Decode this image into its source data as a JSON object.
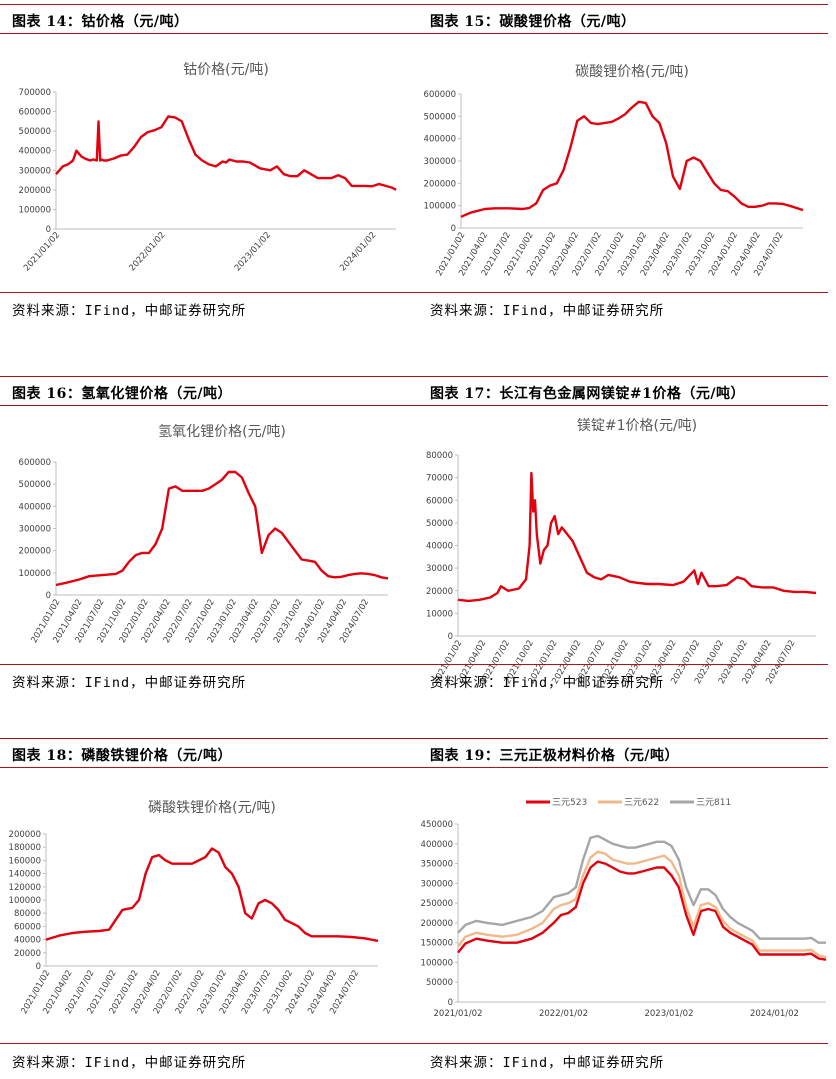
{
  "source_text": "资料来源：IFind，中邮证券研究所",
  "panels": [
    {
      "id": "p14",
      "header": "图表 14：钴价格（元/吨）"
    },
    {
      "id": "p15",
      "header": "图表 15：碳酸锂价格（元/吨）"
    },
    {
      "id": "p16",
      "header": "图表 16：氢氧化锂价格（元/吨）"
    },
    {
      "id": "p17",
      "header": "图表 17：长江有色金属网镁锭#1价格（元/吨）"
    },
    {
      "id": "p18",
      "header": "图表 18：磷酸铁锂价格（元/吨）"
    },
    {
      "id": "p19",
      "header": "图表 19：三元正极材料价格（元/吨）"
    }
  ],
  "chart_data": [
    {
      "id": "c14",
      "type": "line",
      "title": "钴价格(元/吨)",
      "x_tick_labels": [
        "2021/01/02",
        "2022/01/02",
        "2023/01/02",
        "2024/01/02"
      ],
      "ylim": [
        0,
        700000
      ],
      "y_tick_labels": [
        "0",
        "100000",
        "200000",
        "300000",
        "400000",
        "500000",
        "600000",
        "700000"
      ],
      "grid": false,
      "legend": "none",
      "colors": {
        "line": "#e3000f"
      },
      "series": [
        {
          "x": [
            0,
            0.02,
            0.035,
            0.05,
            0.06,
            0.075,
            0.085,
            0.1,
            0.11,
            0.12,
            0.125,
            0.13,
            0.135,
            0.14,
            0.15,
            0.17,
            0.19,
            0.21,
            0.23,
            0.25,
            0.27,
            0.29,
            0.31,
            0.33,
            0.35,
            0.37,
            0.39,
            0.41,
            0.43,
            0.45,
            0.47,
            0.49,
            0.5,
            0.51,
            0.53,
            0.55,
            0.57,
            0.6,
            0.63,
            0.65,
            0.67,
            0.69,
            0.71,
            0.73,
            0.75,
            0.77,
            0.79,
            0.81,
            0.83,
            0.85,
            0.87,
            0.89,
            0.91,
            0.93,
            0.95,
            0.97,
            0.99,
            1.0
          ],
          "values": [
            280000,
            320000,
            330000,
            350000,
            400000,
            370000,
            360000,
            350000,
            355000,
            350000,
            550000,
            350000,
            355000,
            350000,
            350000,
            360000,
            375000,
            380000,
            420000,
            470000,
            495000,
            505000,
            520000,
            575000,
            570000,
            550000,
            460000,
            380000,
            350000,
            330000,
            320000,
            345000,
            340000,
            355000,
            345000,
            345000,
            340000,
            310000,
            300000,
            320000,
            280000,
            270000,
            270000,
            300000,
            280000,
            260000,
            260000,
            260000,
            275000,
            260000,
            220000,
            220000,
            220000,
            218000,
            230000,
            220000,
            210000,
            200000
          ]
        }
      ]
    },
    {
      "id": "c15",
      "type": "line",
      "title": "碳酸锂价格(元/吨)",
      "x_tick_labels": [
        "2021/01/02",
        "2021/04/02",
        "2021/07/02",
        "2021/10/02",
        "2022/01/02",
        "2022/04/02",
        "2022/07/02",
        "2022/10/02",
        "2023/01/02",
        "2023/04/02",
        "2023/07/02",
        "2023/10/02",
        "2024/01/02",
        "2024/04/02",
        "2024/07/02"
      ],
      "ylim": [
        0,
        600000
      ],
      "y_tick_labels": [
        "0",
        "100000",
        "200000",
        "300000",
        "400000",
        "500000",
        "600000"
      ],
      "grid": false,
      "legend": "none",
      "colors": {
        "line": "#e3000f"
      },
      "series": [
        {
          "x": [
            0,
            0.03,
            0.07,
            0.1,
            0.14,
            0.18,
            0.2,
            0.22,
            0.24,
            0.26,
            0.28,
            0.3,
            0.32,
            0.34,
            0.36,
            0.38,
            0.4,
            0.42,
            0.44,
            0.46,
            0.48,
            0.5,
            0.52,
            0.54,
            0.56,
            0.58,
            0.6,
            0.62,
            0.64,
            0.66,
            0.68,
            0.7,
            0.72,
            0.74,
            0.76,
            0.78,
            0.8,
            0.82,
            0.84,
            0.86,
            0.88,
            0.9,
            0.92,
            0.94,
            0.96,
            0.98,
            1.0
          ],
          "values": [
            50000,
            70000,
            85000,
            88000,
            88000,
            85000,
            90000,
            110000,
            170000,
            190000,
            200000,
            260000,
            360000,
            480000,
            500000,
            470000,
            465000,
            470000,
            475000,
            490000,
            510000,
            540000,
            565000,
            560000,
            500000,
            470000,
            380000,
            230000,
            175000,
            300000,
            315000,
            300000,
            250000,
            200000,
            170000,
            165000,
            140000,
            110000,
            95000,
            95000,
            100000,
            110000,
            110000,
            108000,
            100000,
            90000,
            80000
          ]
        }
      ]
    },
    {
      "id": "c16",
      "type": "line",
      "title": "氢氧化锂价格(元/吨)",
      "x_tick_labels": [
        "2021/01/02",
        "2021/04/02",
        "2021/07/02",
        "2021/10/02",
        "2022/01/02",
        "2022/04/02",
        "2022/07/02",
        "2022/10/02",
        "2023/01/02",
        "2023/04/02",
        "2023/07/02",
        "2023/10/02",
        "2024/01/02",
        "2024/04/02",
        "2024/07/02"
      ],
      "ylim": [
        0,
        600000
      ],
      "y_tick_labels": [
        "0",
        "100000",
        "200000",
        "300000",
        "400000",
        "500000",
        "600000"
      ],
      "grid": false,
      "legend": "none",
      "colors": {
        "line": "#e3000f"
      },
      "series": [
        {
          "x": [
            0,
            0.03,
            0.07,
            0.1,
            0.14,
            0.18,
            0.2,
            0.22,
            0.24,
            0.26,
            0.28,
            0.3,
            0.32,
            0.34,
            0.36,
            0.38,
            0.4,
            0.42,
            0.44,
            0.46,
            0.48,
            0.5,
            0.52,
            0.54,
            0.56,
            0.58,
            0.6,
            0.62,
            0.64,
            0.66,
            0.68,
            0.7,
            0.72,
            0.74,
            0.76,
            0.78,
            0.8,
            0.82,
            0.84,
            0.86,
            0.88,
            0.9,
            0.92,
            0.94,
            0.96,
            0.98,
            1.0
          ],
          "values": [
            45000,
            55000,
            70000,
            85000,
            90000,
            95000,
            110000,
            150000,
            180000,
            190000,
            190000,
            230000,
            300000,
            480000,
            490000,
            470000,
            470000,
            470000,
            470000,
            480000,
            500000,
            520000,
            555000,
            555000,
            530000,
            460000,
            400000,
            190000,
            270000,
            300000,
            280000,
            240000,
            200000,
            160000,
            155000,
            150000,
            110000,
            85000,
            80000,
            82000,
            90000,
            95000,
            98000,
            95000,
            90000,
            80000,
            75000
          ]
        }
      ]
    },
    {
      "id": "c17",
      "type": "line",
      "title": "镁锭#1价格(元/吨)",
      "x_tick_labels": [
        "2021/01/02",
        "2021/04/02",
        "2021/07/02",
        "2021/10/02",
        "2022/01/02",
        "2022/04/02",
        "2022/07/02",
        "2022/10/02",
        "2023/01/02",
        "2023/04/02",
        "2023/07/02",
        "2023/10/02",
        "2024/01/02",
        "2024/04/02",
        "2024/07/02"
      ],
      "ylim": [
        0,
        80000
      ],
      "y_tick_labels": [
        "0",
        "10000",
        "20000",
        "30000",
        "40000",
        "50000",
        "60000",
        "70000",
        "80000"
      ],
      "grid": false,
      "legend": "none",
      "colors": {
        "line": "#e3000f"
      },
      "series": [
        {
          "x": [
            0,
            0.03,
            0.06,
            0.09,
            0.11,
            0.12,
            0.14,
            0.17,
            0.19,
            0.2,
            0.205,
            0.21,
            0.215,
            0.22,
            0.23,
            0.24,
            0.25,
            0.26,
            0.27,
            0.28,
            0.29,
            0.3,
            0.32,
            0.34,
            0.36,
            0.38,
            0.4,
            0.42,
            0.45,
            0.48,
            0.5,
            0.53,
            0.56,
            0.6,
            0.63,
            0.66,
            0.67,
            0.68,
            0.69,
            0.7,
            0.72,
            0.75,
            0.78,
            0.8,
            0.82,
            0.85,
            0.88,
            0.91,
            0.94,
            0.97,
            1.0
          ],
          "values": [
            16000,
            15500,
            16000,
            17000,
            19000,
            22000,
            20000,
            21000,
            25000,
            40000,
            72000,
            55000,
            60000,
            45000,
            32000,
            38000,
            40000,
            50000,
            53000,
            45000,
            48000,
            46000,
            42000,
            35000,
            28000,
            26000,
            25000,
            27000,
            26000,
            24000,
            23500,
            23000,
            23000,
            22500,
            24000,
            29000,
            23000,
            28000,
            25000,
            22000,
            22000,
            22500,
            26000,
            25000,
            22000,
            21500,
            21500,
            20000,
            19500,
            19500,
            19000
          ]
        }
      ]
    },
    {
      "id": "c18",
      "type": "line",
      "title": "磷酸铁锂价格(元/吨)",
      "x_tick_labels": [
        "2021/01/02",
        "2021/04/02",
        "2021/07/02",
        "2021/10/02",
        "2022/01/02",
        "2022/04/02",
        "2022/07/02",
        "2022/10/02",
        "2023/01/02",
        "2023/04/02",
        "2023/07/02",
        "2023/10/02",
        "2024/01/02",
        "2024/04/02",
        "2024/07/02"
      ],
      "ylim": [
        0,
        200000
      ],
      "y_tick_labels": [
        "0",
        "20000",
        "40000",
        "60000",
        "80000",
        "100000",
        "120000",
        "140000",
        "160000",
        "180000",
        "200000"
      ],
      "grid": false,
      "legend": "none",
      "colors": {
        "line": "#e3000f"
      },
      "series": [
        {
          "x": [
            0,
            0.04,
            0.08,
            0.12,
            0.16,
            0.19,
            0.21,
            0.23,
            0.26,
            0.28,
            0.3,
            0.32,
            0.34,
            0.36,
            0.38,
            0.4,
            0.42,
            0.44,
            0.46,
            0.48,
            0.5,
            0.52,
            0.54,
            0.56,
            0.58,
            0.6,
            0.62,
            0.64,
            0.66,
            0.68,
            0.7,
            0.72,
            0.74,
            0.76,
            0.78,
            0.8,
            0.84,
            0.88,
            0.92,
            0.96,
            1.0
          ],
          "values": [
            40000,
            46000,
            50000,
            52000,
            53000,
            55000,
            70000,
            85000,
            88000,
            100000,
            140000,
            165000,
            168000,
            160000,
            155000,
            155000,
            155000,
            155000,
            160000,
            165000,
            178000,
            172000,
            150000,
            140000,
            120000,
            80000,
            72000,
            95000,
            100000,
            95000,
            85000,
            70000,
            65000,
            60000,
            50000,
            45000,
            45000,
            45000,
            44000,
            42000,
            38000
          ]
        }
      ]
    },
    {
      "id": "c19",
      "type": "line",
      "title": "",
      "x_tick_labels": [
        "2021/01/02",
        "2022/01/02",
        "2023/01/02",
        "2024/01/02"
      ],
      "ylim": [
        0,
        450000
      ],
      "y_tick_labels": [
        "0",
        "50000",
        "100000",
        "150000",
        "200000",
        "250000",
        "300000",
        "350000",
        "400000",
        "450000"
      ],
      "grid": false,
      "legend": "top",
      "series": [
        {
          "name": "三元523",
          "color": "#e3000f",
          "x": [
            0,
            0.02,
            0.05,
            0.08,
            0.12,
            0.16,
            0.2,
            0.23,
            0.26,
            0.28,
            0.3,
            0.32,
            0.34,
            0.36,
            0.38,
            0.4,
            0.42,
            0.44,
            0.46,
            0.48,
            0.5,
            0.52,
            0.54,
            0.56,
            0.58,
            0.6,
            0.62,
            0.64,
            0.66,
            0.68,
            0.7,
            0.72,
            0.74,
            0.76,
            0.78,
            0.8,
            0.82,
            0.84,
            0.86,
            0.88,
            0.9,
            0.92,
            0.94,
            0.96,
            0.98,
            1.0
          ],
          "values": [
            125000,
            148000,
            160000,
            155000,
            150000,
            150000,
            160000,
            175000,
            200000,
            220000,
            225000,
            240000,
            300000,
            340000,
            355000,
            350000,
            340000,
            330000,
            325000,
            325000,
            330000,
            335000,
            340000,
            340000,
            320000,
            290000,
            220000,
            170000,
            230000,
            235000,
            230000,
            190000,
            175000,
            165000,
            155000,
            145000,
            120000,
            120000,
            120000,
            120000,
            120000,
            120000,
            120000,
            122000,
            110000,
            107000
          ]
        },
        {
          "name": "三元622",
          "color": "#f0b98a",
          "x": [
            0,
            0.02,
            0.05,
            0.08,
            0.12,
            0.16,
            0.2,
            0.23,
            0.26,
            0.28,
            0.3,
            0.32,
            0.34,
            0.36,
            0.38,
            0.4,
            0.42,
            0.44,
            0.46,
            0.48,
            0.5,
            0.52,
            0.54,
            0.56,
            0.58,
            0.6,
            0.62,
            0.64,
            0.66,
            0.68,
            0.7,
            0.72,
            0.74,
            0.76,
            0.78,
            0.8,
            0.82,
            0.84,
            0.86,
            0.88,
            0.9,
            0.92,
            0.94,
            0.96,
            0.98,
            1.0
          ],
          "values": [
            140000,
            165000,
            175000,
            170000,
            165000,
            170000,
            185000,
            200000,
            235000,
            245000,
            250000,
            260000,
            320000,
            365000,
            380000,
            375000,
            360000,
            355000,
            350000,
            350000,
            355000,
            360000,
            365000,
            370000,
            355000,
            320000,
            240000,
            190000,
            245000,
            250000,
            240000,
            205000,
            185000,
            175000,
            165000,
            155000,
            130000,
            130000,
            130000,
            130000,
            130000,
            130000,
            130000,
            132000,
            118000,
            113000
          ]
        },
        {
          "name": "三元811",
          "color": "#a6a6a6",
          "x": [
            0,
            0.02,
            0.05,
            0.08,
            0.12,
            0.16,
            0.2,
            0.23,
            0.26,
            0.28,
            0.3,
            0.32,
            0.34,
            0.36,
            0.38,
            0.4,
            0.42,
            0.44,
            0.46,
            0.48,
            0.5,
            0.52,
            0.54,
            0.56,
            0.58,
            0.6,
            0.62,
            0.64,
            0.66,
            0.68,
            0.7,
            0.72,
            0.74,
            0.76,
            0.78,
            0.8,
            0.82,
            0.84,
            0.86,
            0.88,
            0.9,
            0.92,
            0.94,
            0.96,
            0.98,
            1.0
          ],
          "values": [
            175000,
            195000,
            205000,
            200000,
            195000,
            205000,
            215000,
            230000,
            265000,
            270000,
            275000,
            290000,
            360000,
            415000,
            420000,
            410000,
            400000,
            395000,
            390000,
            390000,
            395000,
            400000,
            405000,
            405000,
            395000,
            360000,
            290000,
            245000,
            285000,
            285000,
            270000,
            235000,
            215000,
            200000,
            190000,
            180000,
            160000,
            160000,
            160000,
            160000,
            160000,
            160000,
            160000,
            162000,
            150000,
            150000
          ]
        }
      ]
    }
  ]
}
